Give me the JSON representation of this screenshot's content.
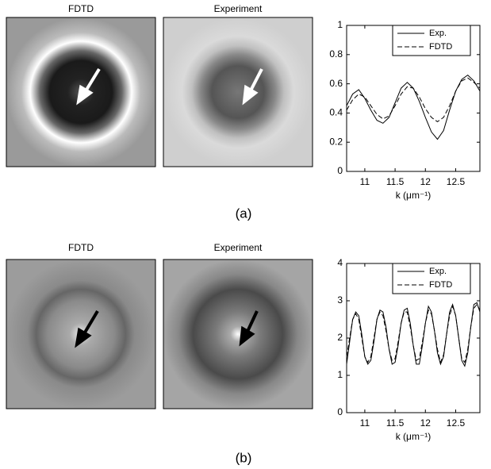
{
  "chart_data": [
    {
      "type": "line",
      "xlabel": "k (μm⁻¹)",
      "xlim": [
        10.7,
        12.9
      ],
      "xticks": [
        11,
        11.5,
        12,
        12.5
      ],
      "ylim": [
        0,
        1
      ],
      "yticks": [
        0,
        0.2,
        0.4,
        0.6,
        0.8,
        1
      ],
      "legend": "upper right",
      "x": [
        10.7,
        10.8,
        10.9,
        11.0,
        11.1,
        11.2,
        11.3,
        11.4,
        11.5,
        11.6,
        11.7,
        11.8,
        11.9,
        12.0,
        12.1,
        12.2,
        12.3,
        12.4,
        12.5,
        12.6,
        12.7,
        12.8,
        12.9
      ],
      "series": [
        {
          "name": "Exp.",
          "color": "#000000",
          "linestyle": "solid",
          "values": [
            0.45,
            0.53,
            0.56,
            0.5,
            0.42,
            0.35,
            0.33,
            0.37,
            0.47,
            0.57,
            0.61,
            0.57,
            0.48,
            0.37,
            0.27,
            0.22,
            0.28,
            0.42,
            0.55,
            0.63,
            0.66,
            0.62,
            0.55
          ]
        },
        {
          "name": "FDTD",
          "color": "#000000",
          "linestyle": "dashed",
          "values": [
            0.42,
            0.49,
            0.53,
            0.51,
            0.45,
            0.39,
            0.36,
            0.38,
            0.45,
            0.53,
            0.58,
            0.57,
            0.51,
            0.43,
            0.37,
            0.34,
            0.37,
            0.45,
            0.55,
            0.62,
            0.64,
            0.61,
            0.57
          ]
        }
      ]
    },
    {
      "type": "line",
      "xlabel": "k (μm⁻¹)",
      "xlim": [
        10.7,
        12.9
      ],
      "xticks": [
        11,
        11.5,
        12,
        12.5
      ],
      "ylim": [
        0,
        4
      ],
      "yticks": [
        0,
        1,
        2,
        3,
        4
      ],
      "legend": "upper right",
      "x": [
        10.7,
        10.75,
        10.8,
        10.85,
        10.9,
        10.95,
        11.0,
        11.05,
        11.1,
        11.15,
        11.2,
        11.25,
        11.3,
        11.35,
        11.4,
        11.45,
        11.5,
        11.55,
        11.6,
        11.65,
        11.7,
        11.75,
        11.8,
        11.85,
        11.9,
        11.95,
        12.0,
        12.05,
        12.1,
        12.15,
        12.2,
        12.25,
        12.3,
        12.35,
        12.4,
        12.45,
        12.5,
        12.55,
        12.6,
        12.65,
        12.7,
        12.75,
        12.8,
        12.85,
        12.9
      ],
      "series": [
        {
          "name": "Exp.",
          "color": "#000000",
          "linestyle": "solid",
          "values": [
            1.3,
            1.9,
            2.5,
            2.7,
            2.6,
            2.1,
            1.5,
            1.3,
            1.4,
            1.9,
            2.5,
            2.75,
            2.7,
            2.3,
            1.7,
            1.3,
            1.35,
            1.8,
            2.4,
            2.75,
            2.8,
            2.4,
            1.8,
            1.3,
            1.3,
            1.8,
            2.4,
            2.85,
            2.7,
            2.2,
            1.6,
            1.3,
            1.5,
            2.1,
            2.7,
            2.9,
            2.6,
            2.0,
            1.4,
            1.25,
            1.6,
            2.3,
            2.9,
            2.95,
            2.7
          ]
        },
        {
          "name": "FDTD",
          "color": "#000000",
          "linestyle": "dashed",
          "values": [
            1.5,
            2.0,
            2.5,
            2.65,
            2.5,
            2.0,
            1.5,
            1.35,
            1.5,
            2.0,
            2.5,
            2.7,
            2.6,
            2.2,
            1.7,
            1.4,
            1.45,
            1.9,
            2.4,
            2.7,
            2.7,
            2.3,
            1.8,
            1.4,
            1.45,
            1.9,
            2.4,
            2.75,
            2.65,
            2.2,
            1.7,
            1.35,
            1.55,
            2.1,
            2.6,
            2.85,
            2.6,
            2.0,
            1.45,
            1.35,
            1.7,
            2.3,
            2.8,
            2.9,
            2.75
          ]
        }
      ]
    }
  ],
  "panels": [
    {
      "label": "(a)",
      "image_titles": [
        "FDTD",
        "Experiment"
      ]
    },
    {
      "label": "(b)",
      "image_titles": [
        "FDTD",
        "Experiment"
      ]
    }
  ]
}
